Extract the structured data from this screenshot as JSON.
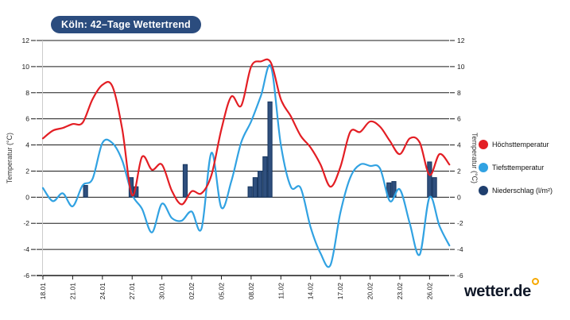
{
  "header": {
    "title": "Köln: 42–Tage Wettertrend"
  },
  "branding": {
    "logo_text": "wetter.de",
    "logo_color": "#101828",
    "logo_dot_color": "#f6a800"
  },
  "legend": {
    "position": "right",
    "items": [
      {
        "label": "Höchsttemperatur",
        "color": "#e31e24"
      },
      {
        "label": "Tiefsttemperatur",
        "color": "#31a2e2"
      },
      {
        "label": "Niederschlag (l/m²)",
        "color": "#1f3f6e"
      }
    ]
  },
  "chart_data": {
    "type": "line+bar",
    "title": "Köln: 42–Tage Wettertrend",
    "grid": true,
    "x_axis": {
      "days_total": 42,
      "x_unit": "day index from 18.01",
      "tick_labels": [
        "18.01",
        "21.01",
        "24.01",
        "27.01",
        "30.01",
        "02.02",
        "05.02",
        "08.02",
        "11.02",
        "14.02",
        "17.02",
        "20.02",
        "23.02",
        "26.02"
      ],
      "tick_day_indices": [
        0,
        3,
        6,
        9,
        12,
        15,
        18,
        21,
        24,
        27,
        30,
        33,
        36,
        39
      ]
    },
    "y_axis_left": {
      "label": "Temperatur (°C)",
      "min": -6,
      "max": 12,
      "tick_step": 2,
      "tick_labels": [
        "12",
        "10",
        "8",
        "6",
        "4",
        "2",
        "0",
        "-2",
        "-4",
        "-6"
      ]
    },
    "y_axis_right": {
      "label": "Temperatur (°C)",
      "min": -6,
      "max": 12,
      "tick_step": 2,
      "tick_labels": [
        "12",
        "10",
        "8",
        "6",
        "4",
        "2",
        "0",
        "-2",
        "-4",
        "-6"
      ]
    },
    "series": [
      {
        "name": "Höchsttemperatur",
        "type": "line",
        "color": "#e31e24",
        "values": [
          4.5,
          5.1,
          5.3,
          5.6,
          5.7,
          7.5,
          8.6,
          8.5,
          5.2,
          0.15,
          3.1,
          2.1,
          2.5,
          0.5,
          -0.55,
          0.45,
          0.3,
          1.7,
          5.2,
          7.7,
          7.0,
          10.0,
          10.4,
          10.3,
          7.5,
          6.2,
          4.7,
          3.8,
          2.5,
          0.8,
          2.3,
          5.0,
          5.0,
          5.8,
          5.4,
          4.3,
          3.3,
          4.5,
          4.2,
          1.7,
          3.3,
          2.5
        ]
      },
      {
        "name": "Tiefsttemperatur",
        "type": "line",
        "color": "#31a2e2",
        "values": [
          0.7,
          -0.3,
          0.3,
          -0.7,
          0.9,
          1.4,
          4.15,
          4.15,
          2.8,
          0.2,
          -0.9,
          -2.7,
          -0.5,
          -1.6,
          -1.8,
          -1.1,
          -2.4,
          3.4,
          -0.8,
          1.2,
          4.2,
          5.8,
          7.8,
          10.0,
          4.0,
          0.8,
          0.7,
          -2.3,
          -4.3,
          -5.2,
          -1.2,
          1.5,
          2.5,
          2.4,
          2.2,
          -0.3,
          0.6,
          -2.0,
          -4.4,
          0.0,
          -2.2,
          -3.7
        ]
      },
      {
        "name": "Niederschlag (l/m²)",
        "type": "bar",
        "color": "#2f4f7d",
        "border_color": "#16355e",
        "unit": "l/m²",
        "points": [
          {
            "day": 4.3,
            "value": 0.9
          },
          {
            "day": 8.9,
            "value": 1.5
          },
          {
            "day": 9.4,
            "value": 0.8
          },
          {
            "day": 14.35,
            "value": 2.5
          },
          {
            "day": 20.9,
            "value": 0.8
          },
          {
            "day": 21.4,
            "value": 1.5
          },
          {
            "day": 21.9,
            "value": 2.0
          },
          {
            "day": 22.4,
            "value": 3.1
          },
          {
            "day": 22.9,
            "value": 7.3
          },
          {
            "day": 34.9,
            "value": 1.1
          },
          {
            "day": 35.4,
            "value": 1.2
          },
          {
            "day": 39.0,
            "value": 2.7
          },
          {
            "day": 39.5,
            "value": 1.5
          }
        ]
      }
    ]
  }
}
